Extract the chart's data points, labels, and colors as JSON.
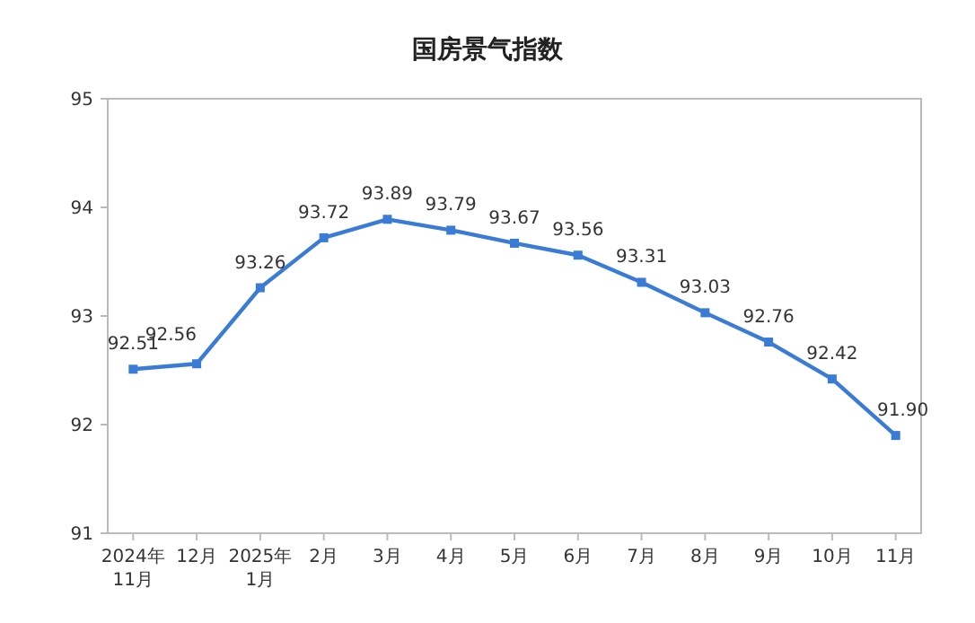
{
  "chart_data": {
    "type": "line",
    "title": "国房景气指数",
    "categories": [
      "2024年\n11月",
      "12月",
      "2025年\n1月",
      "2月",
      "3月",
      "4月",
      "5月",
      "6月",
      "7月",
      "8月",
      "9月",
      "10月",
      "11月"
    ],
    "series": [
      {
        "color": "#3a7bd5",
        "values": [
          92.51,
          92.56,
          93.26,
          93.72,
          93.89,
          93.79,
          93.67,
          93.56,
          93.31,
          93.03,
          92.76,
          92.42,
          91.9
        ],
        "value_labels": [
          "92.51",
          "92.56",
          "93.26",
          "93.72",
          "93.89",
          "93.79",
          "93.67",
          "93.56",
          "93.31",
          "93.03",
          "92.76",
          "92.42",
          "91.90"
        ]
      }
    ],
    "ylim": [
      91,
      95
    ],
    "yticks": [
      91,
      92,
      93,
      94,
      95
    ],
    "marker": "square",
    "line_style": "solid",
    "grid": false
  }
}
